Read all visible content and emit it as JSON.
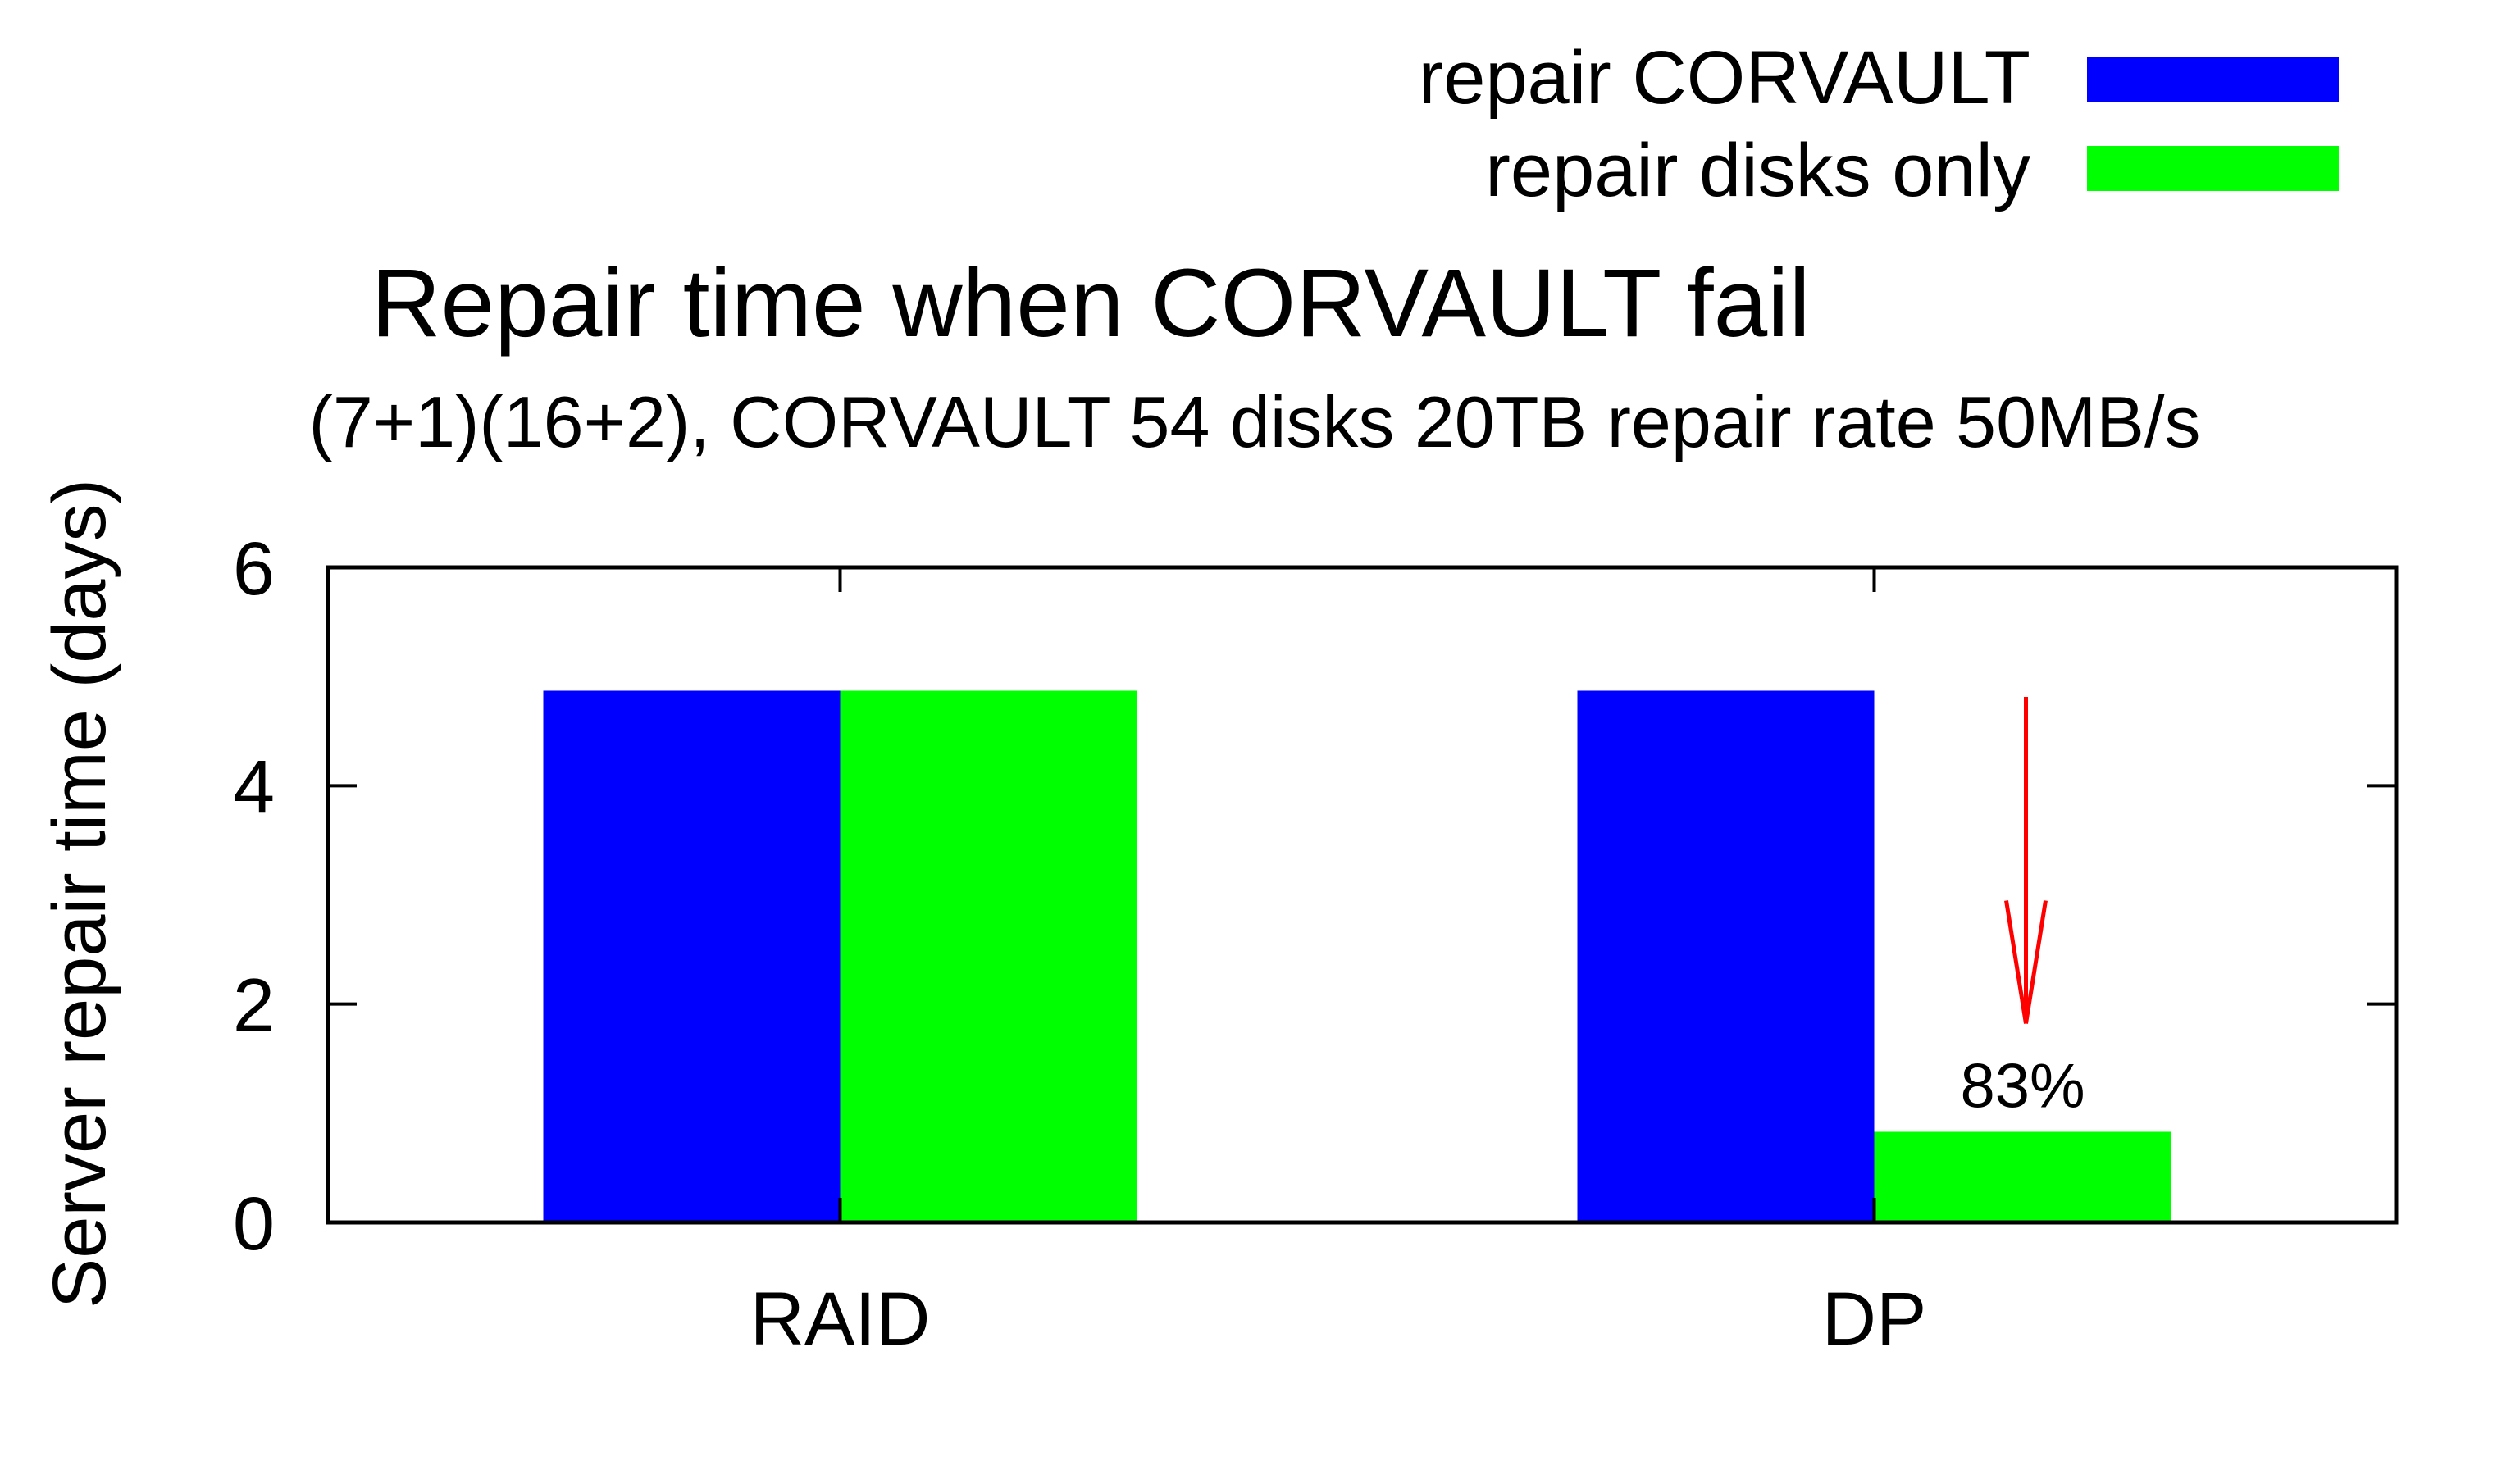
{
  "chart_data": {
    "type": "bar",
    "title": "Repair time when CORVAULT fail",
    "subtitle": "(7+1)(16+2), CORVAULT 54 disks 20TB repair rate 50MB/s",
    "xlabel": "",
    "ylabel": "Server repair time (days)",
    "ylim": [
      0,
      6
    ],
    "yticks": [
      "0",
      "2",
      "4",
      "6"
    ],
    "categories": [
      "RAID",
      "DP"
    ],
    "series": [
      {
        "name": "repair CORVAULT",
        "color": "#0000ff",
        "values": [
          4.87,
          4.87
        ]
      },
      {
        "name": "repair disks only",
        "color": "#00ff00",
        "values": [
          4.87,
          0.83
        ]
      }
    ],
    "annotation": {
      "text": "83%",
      "color": "#ff0000",
      "category": "DP",
      "series": "repair disks only"
    },
    "legend_position": "top-right",
    "grid": false
  }
}
